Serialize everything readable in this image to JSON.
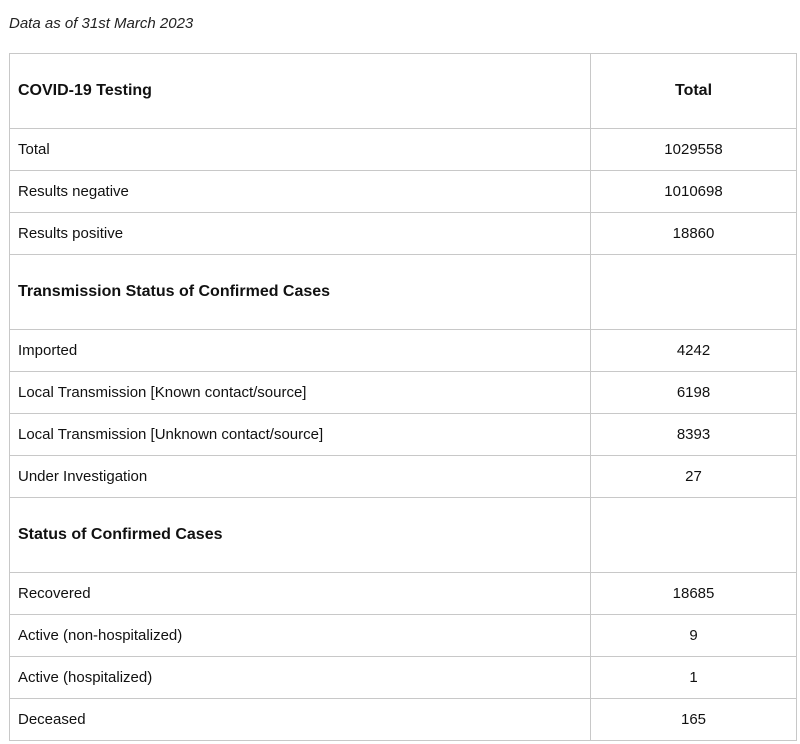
{
  "as_of": "Data as of 31st March 2023",
  "table": {
    "header": {
      "label": "COVID-19 Testing",
      "value": "Total"
    },
    "testing_rows": [
      {
        "label": "Total",
        "value": "1029558"
      },
      {
        "label": "Results negative",
        "value": "1010698"
      },
      {
        "label": "Results positive",
        "value": "18860"
      }
    ],
    "transmission_heading": "Transmission Status of Confirmed Cases",
    "transmission_rows": [
      {
        "label": "Imported",
        "value": "4242"
      },
      {
        "label": "Local Transmission [Known contact/source]",
        "value": "6198"
      },
      {
        "label": "Local Transmission [Unknown contact/source]",
        "value": "8393"
      },
      {
        "label": "Under Investigation",
        "value": "27"
      }
    ],
    "status_heading": "Status of Confirmed Cases",
    "status_rows": [
      {
        "label": "Recovered",
        "value": "18685"
      },
      {
        "label": "Active (non-hospitalized)",
        "value": "9"
      },
      {
        "label": "Active (hospitalized)",
        "value": "1"
      },
      {
        "label": "Deceased",
        "value": "165"
      }
    ]
  }
}
